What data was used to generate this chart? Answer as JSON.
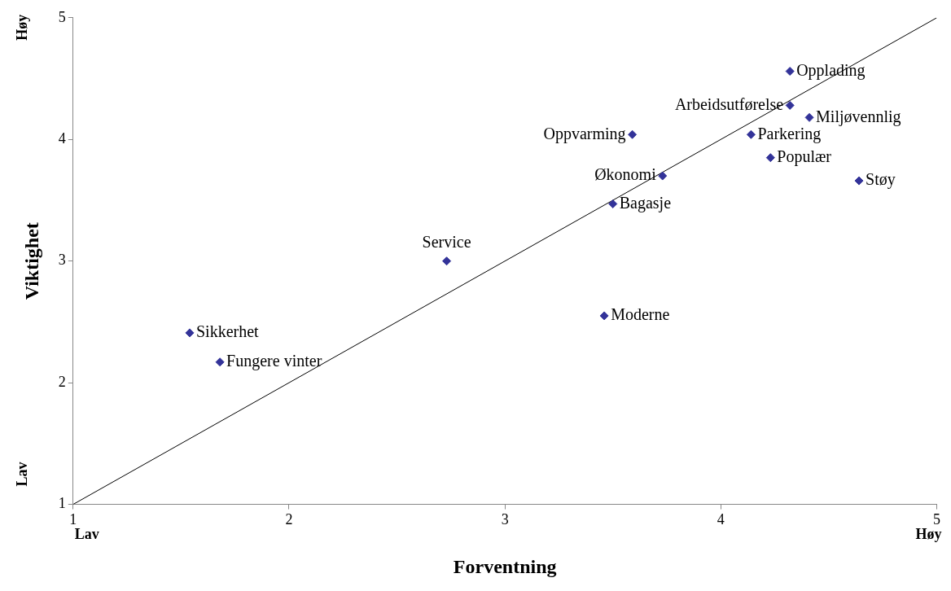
{
  "chart_data": {
    "type": "scatter",
    "xlabel": "Forventning",
    "ylabel": "Viktighet",
    "xlim": [
      1,
      5
    ],
    "xticks": [
      1,
      2,
      3,
      4,
      5
    ],
    "ylim": [
      1,
      5
    ],
    "yticks": [
      1,
      2,
      3,
      4,
      5
    ],
    "grid": false,
    "legend": false,
    "marker": "diamond",
    "annotations": [
      "Lav",
      "Høy",
      "Lav",
      "Høy"
    ],
    "series": [
      {
        "name": "Opplading",
        "color": "#333399",
        "x": [
          4.32
        ],
        "values": [
          4.56
        ]
      },
      {
        "name": "Arbeidsutførelse",
        "color": "#333399",
        "x": [
          4.32
        ],
        "values": [
          4.28
        ]
      },
      {
        "name": "Miljøvennlig",
        "color": "#333399",
        "x": [
          4.41
        ],
        "values": [
          4.18
        ]
      },
      {
        "name": "Oppvarming",
        "color": "#333399",
        "x": [
          3.59
        ],
        "values": [
          4.04
        ]
      },
      {
        "name": "Parkering",
        "color": "#333399",
        "x": [
          4.14
        ],
        "values": [
          4.04
        ]
      },
      {
        "name": "Populær",
        "color": "#333399",
        "x": [
          4.23
        ],
        "values": [
          3.85
        ]
      },
      {
        "name": "Økonomi",
        "color": "#333399",
        "x": [
          3.73
        ],
        "values": [
          3.7
        ]
      },
      {
        "name": "Støy",
        "color": "#333399",
        "x": [
          4.64
        ],
        "values": [
          3.66
        ]
      },
      {
        "name": "Bagasje",
        "color": "#333399",
        "x": [
          3.5
        ],
        "values": [
          3.47
        ]
      },
      {
        "name": "Service",
        "color": "#333399",
        "x": [
          2.73
        ],
        "values": [
          3.0
        ]
      },
      {
        "name": "Moderne",
        "color": "#333399",
        "x": [
          3.46
        ],
        "values": [
          2.55
        ]
      },
      {
        "name": "Sikkerhet",
        "color": "#333399",
        "x": [
          1.54
        ],
        "values": [
          2.41
        ]
      },
      {
        "name": "Fungere vinter",
        "color": "#333399",
        "x": [
          1.68
        ],
        "values": [
          2.17
        ]
      },
      {
        "type": "line",
        "color": "#000000",
        "x": [
          1,
          5
        ],
        "values": [
          1,
          5
        ],
        "marker": "none",
        "line_style": "solid"
      }
    ]
  }
}
